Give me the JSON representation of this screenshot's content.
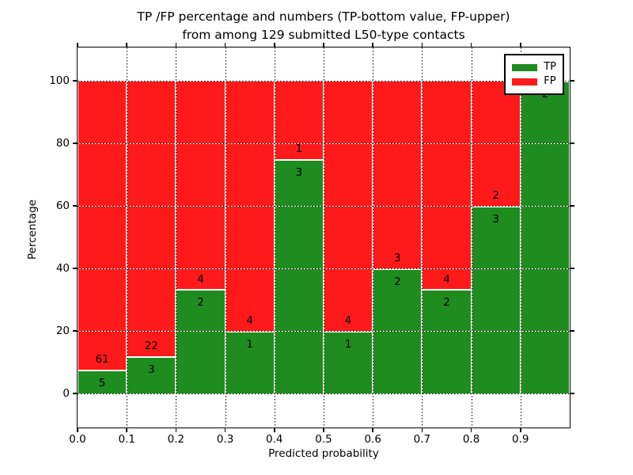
{
  "figure": {
    "title_line1": "TP /FP percentage and numbers (TP-bottom value, FP-upper)",
    "title_line2": "from among 129 submitted L50-type contacts"
  },
  "chart_data": {
    "type": "bar",
    "stacked": true,
    "title": "TP /FP percentage and numbers (TP-bottom value, FP-upper)\nfrom among 129 submitted L50-type contacts",
    "xlabel": "Predicted probability",
    "ylabel": "Percentage",
    "total_contacts": 129,
    "grid": "dotted",
    "xlim": [
      0.0,
      1.0
    ],
    "ylim": [
      -11,
      110
    ],
    "x_tick_labels": [
      "0.0",
      "0.1",
      "0.2",
      "0.3",
      "0.4",
      "0.5",
      "0.6",
      "0.7",
      "0.8",
      "0.9"
    ],
    "y_tick_values": [
      0,
      20,
      40,
      60,
      80,
      100
    ],
    "colors": {
      "tp": "#1f8c1f",
      "fp": "#fe1a1a",
      "background": "#ffffff",
      "grid": "#000000"
    },
    "legend": {
      "position": "upper right",
      "entries": [
        {
          "label": "TP",
          "color": "#1f8c1f"
        },
        {
          "label": "FP",
          "color": "#fe1a1a"
        }
      ]
    },
    "categories": [
      "0.0-0.1",
      "0.1-0.2",
      "0.2-0.3",
      "0.3-0.4",
      "0.4-0.5",
      "0.5-0.6",
      "0.6-0.7",
      "0.7-0.8",
      "0.8-0.9",
      "0.9-1.0"
    ],
    "series": [
      {
        "name": "TP",
        "counts": [
          5,
          3,
          2,
          1,
          3,
          1,
          2,
          2,
          3,
          2
        ]
      },
      {
        "name": "FP",
        "counts": [
          61,
          22,
          4,
          4,
          1,
          4,
          3,
          4,
          2,
          0
        ]
      }
    ],
    "bins": [
      {
        "x_start": 0.0,
        "x_end": 0.1,
        "tp_count": 5,
        "fp_count": 61,
        "tp_pct": 7.58,
        "fp_pct": 92.42,
        "fp_label_visible": true
      },
      {
        "x_start": 0.1,
        "x_end": 0.2,
        "tp_count": 3,
        "fp_count": 22,
        "tp_pct": 12.0,
        "fp_pct": 88.0,
        "fp_label_visible": true
      },
      {
        "x_start": 0.2,
        "x_end": 0.3,
        "tp_count": 2,
        "fp_count": 4,
        "tp_pct": 33.33,
        "fp_pct": 66.67,
        "fp_label_visible": true
      },
      {
        "x_start": 0.3,
        "x_end": 0.4,
        "tp_count": 1,
        "fp_count": 4,
        "tp_pct": 20.0,
        "fp_pct": 80.0,
        "fp_label_visible": true
      },
      {
        "x_start": 0.4,
        "x_end": 0.5,
        "tp_count": 3,
        "fp_count": 1,
        "tp_pct": 75.0,
        "fp_pct": 25.0,
        "fp_label_visible": true
      },
      {
        "x_start": 0.5,
        "x_end": 0.6,
        "tp_count": 1,
        "fp_count": 4,
        "tp_pct": 20.0,
        "fp_pct": 80.0,
        "fp_label_visible": true
      },
      {
        "x_start": 0.6,
        "x_end": 0.7,
        "tp_count": 2,
        "fp_count": 3,
        "tp_pct": 40.0,
        "fp_pct": 60.0,
        "fp_label_visible": true
      },
      {
        "x_start": 0.7,
        "x_end": 0.8,
        "tp_count": 2,
        "fp_count": 4,
        "tp_pct": 33.33,
        "fp_pct": 66.67,
        "fp_label_visible": true
      },
      {
        "x_start": 0.8,
        "x_end": 0.9,
        "tp_count": 3,
        "fp_count": 2,
        "tp_pct": 60.0,
        "fp_pct": 40.0,
        "fp_label_visible": true
      },
      {
        "x_start": 0.9,
        "x_end": 1.0,
        "tp_count": 2,
        "fp_count": 0,
        "tp_pct": 100.0,
        "fp_pct": 0.0,
        "fp_label_visible": false
      }
    ]
  }
}
